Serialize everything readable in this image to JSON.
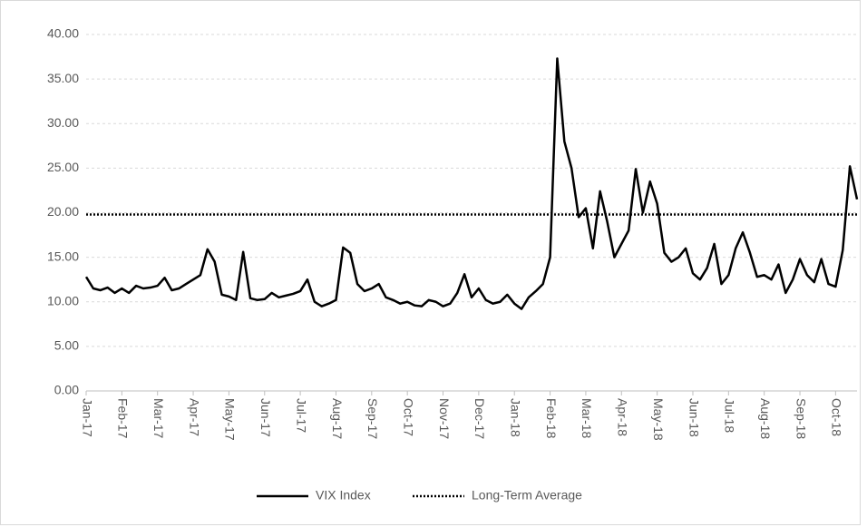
{
  "chart_data": {
    "type": "line",
    "categories": [
      "Jan-17",
      null,
      null,
      null,
      null,
      "Feb-17",
      null,
      null,
      null,
      null,
      "Mar-17",
      null,
      null,
      null,
      null,
      "Apr-17",
      null,
      null,
      null,
      null,
      "May-17",
      null,
      null,
      null,
      null,
      "Jun-17",
      null,
      null,
      null,
      null,
      "Jul-17",
      null,
      null,
      null,
      null,
      "Aug-17",
      null,
      null,
      null,
      null,
      "Sep-17",
      null,
      null,
      null,
      null,
      "Oct-17",
      null,
      null,
      null,
      null,
      "Nov-17",
      null,
      null,
      null,
      null,
      "Dec-17",
      null,
      null,
      null,
      null,
      "Jan-18",
      null,
      null,
      null,
      null,
      "Feb-18",
      null,
      null,
      null,
      null,
      "Mar-18",
      null,
      null,
      null,
      null,
      "Apr-18",
      null,
      null,
      null,
      null,
      "May-18",
      null,
      null,
      null,
      null,
      "Jun-18",
      null,
      null,
      null,
      null,
      "Jul-18",
      null,
      null,
      null,
      null,
      "Aug-18",
      null,
      null,
      null,
      null,
      "Sep-18",
      null,
      null,
      null,
      null,
      "Oct-18",
      null,
      null,
      null
    ],
    "series": [
      {
        "name": "VIX Index",
        "color": "#000000",
        "values": [
          12.8,
          11.5,
          11.3,
          11.6,
          11.0,
          11.5,
          11.0,
          11.8,
          11.5,
          11.6,
          11.8,
          12.7,
          11.3,
          11.5,
          12.0,
          12.5,
          13.0,
          15.9,
          14.5,
          10.8,
          10.6,
          10.2,
          15.6,
          10.4,
          10.2,
          10.3,
          11.0,
          10.5,
          10.7,
          10.9,
          11.2,
          12.5,
          10.0,
          9.5,
          9.8,
          10.2,
          16.1,
          15.5,
          12.0,
          11.2,
          11.5,
          12.0,
          10.5,
          10.2,
          9.8,
          10.0,
          9.6,
          9.5,
          10.2,
          10.0,
          9.5,
          9.8,
          11.0,
          13.1,
          10.5,
          11.5,
          10.2,
          9.8,
          10.0,
          10.8,
          9.8,
          9.2,
          10.5,
          11.2,
          12.0,
          15.0,
          37.3,
          28.0,
          25.0,
          19.5,
          20.5,
          16.0,
          22.4,
          19.0,
          15.0,
          16.5,
          18.0,
          24.9,
          20.0,
          23.5,
          21.0,
          15.5,
          14.5,
          15.0,
          16.0,
          13.2,
          12.5,
          13.8,
          16.5,
          12.0,
          13.0,
          16.0,
          17.8,
          15.5,
          12.8,
          13.0,
          12.5,
          14.2,
          11.0,
          12.5,
          14.8,
          13.0,
          12.2,
          14.8,
          12.0,
          11.7,
          15.8,
          25.2,
          21.5
        ]
      }
    ],
    "reference_line": {
      "name": "Long-Term Average",
      "value": 19.8,
      "color": "#000000",
      "style": "dotted"
    },
    "ylim": [
      0,
      40
    ],
    "yticks": [
      {
        "value": 0,
        "label": "0.00"
      },
      {
        "value": 5,
        "label": "5.00"
      },
      {
        "value": 10,
        "label": "10.00"
      },
      {
        "value": 15,
        "label": "15.00"
      },
      {
        "value": 20,
        "label": "20.00"
      },
      {
        "value": 25,
        "label": "25.00"
      },
      {
        "value": 30,
        "label": "30.00"
      },
      {
        "value": 35,
        "label": "35.00"
      },
      {
        "value": 40,
        "label": "40.00"
      }
    ],
    "grid": true,
    "legend": "bottom"
  }
}
